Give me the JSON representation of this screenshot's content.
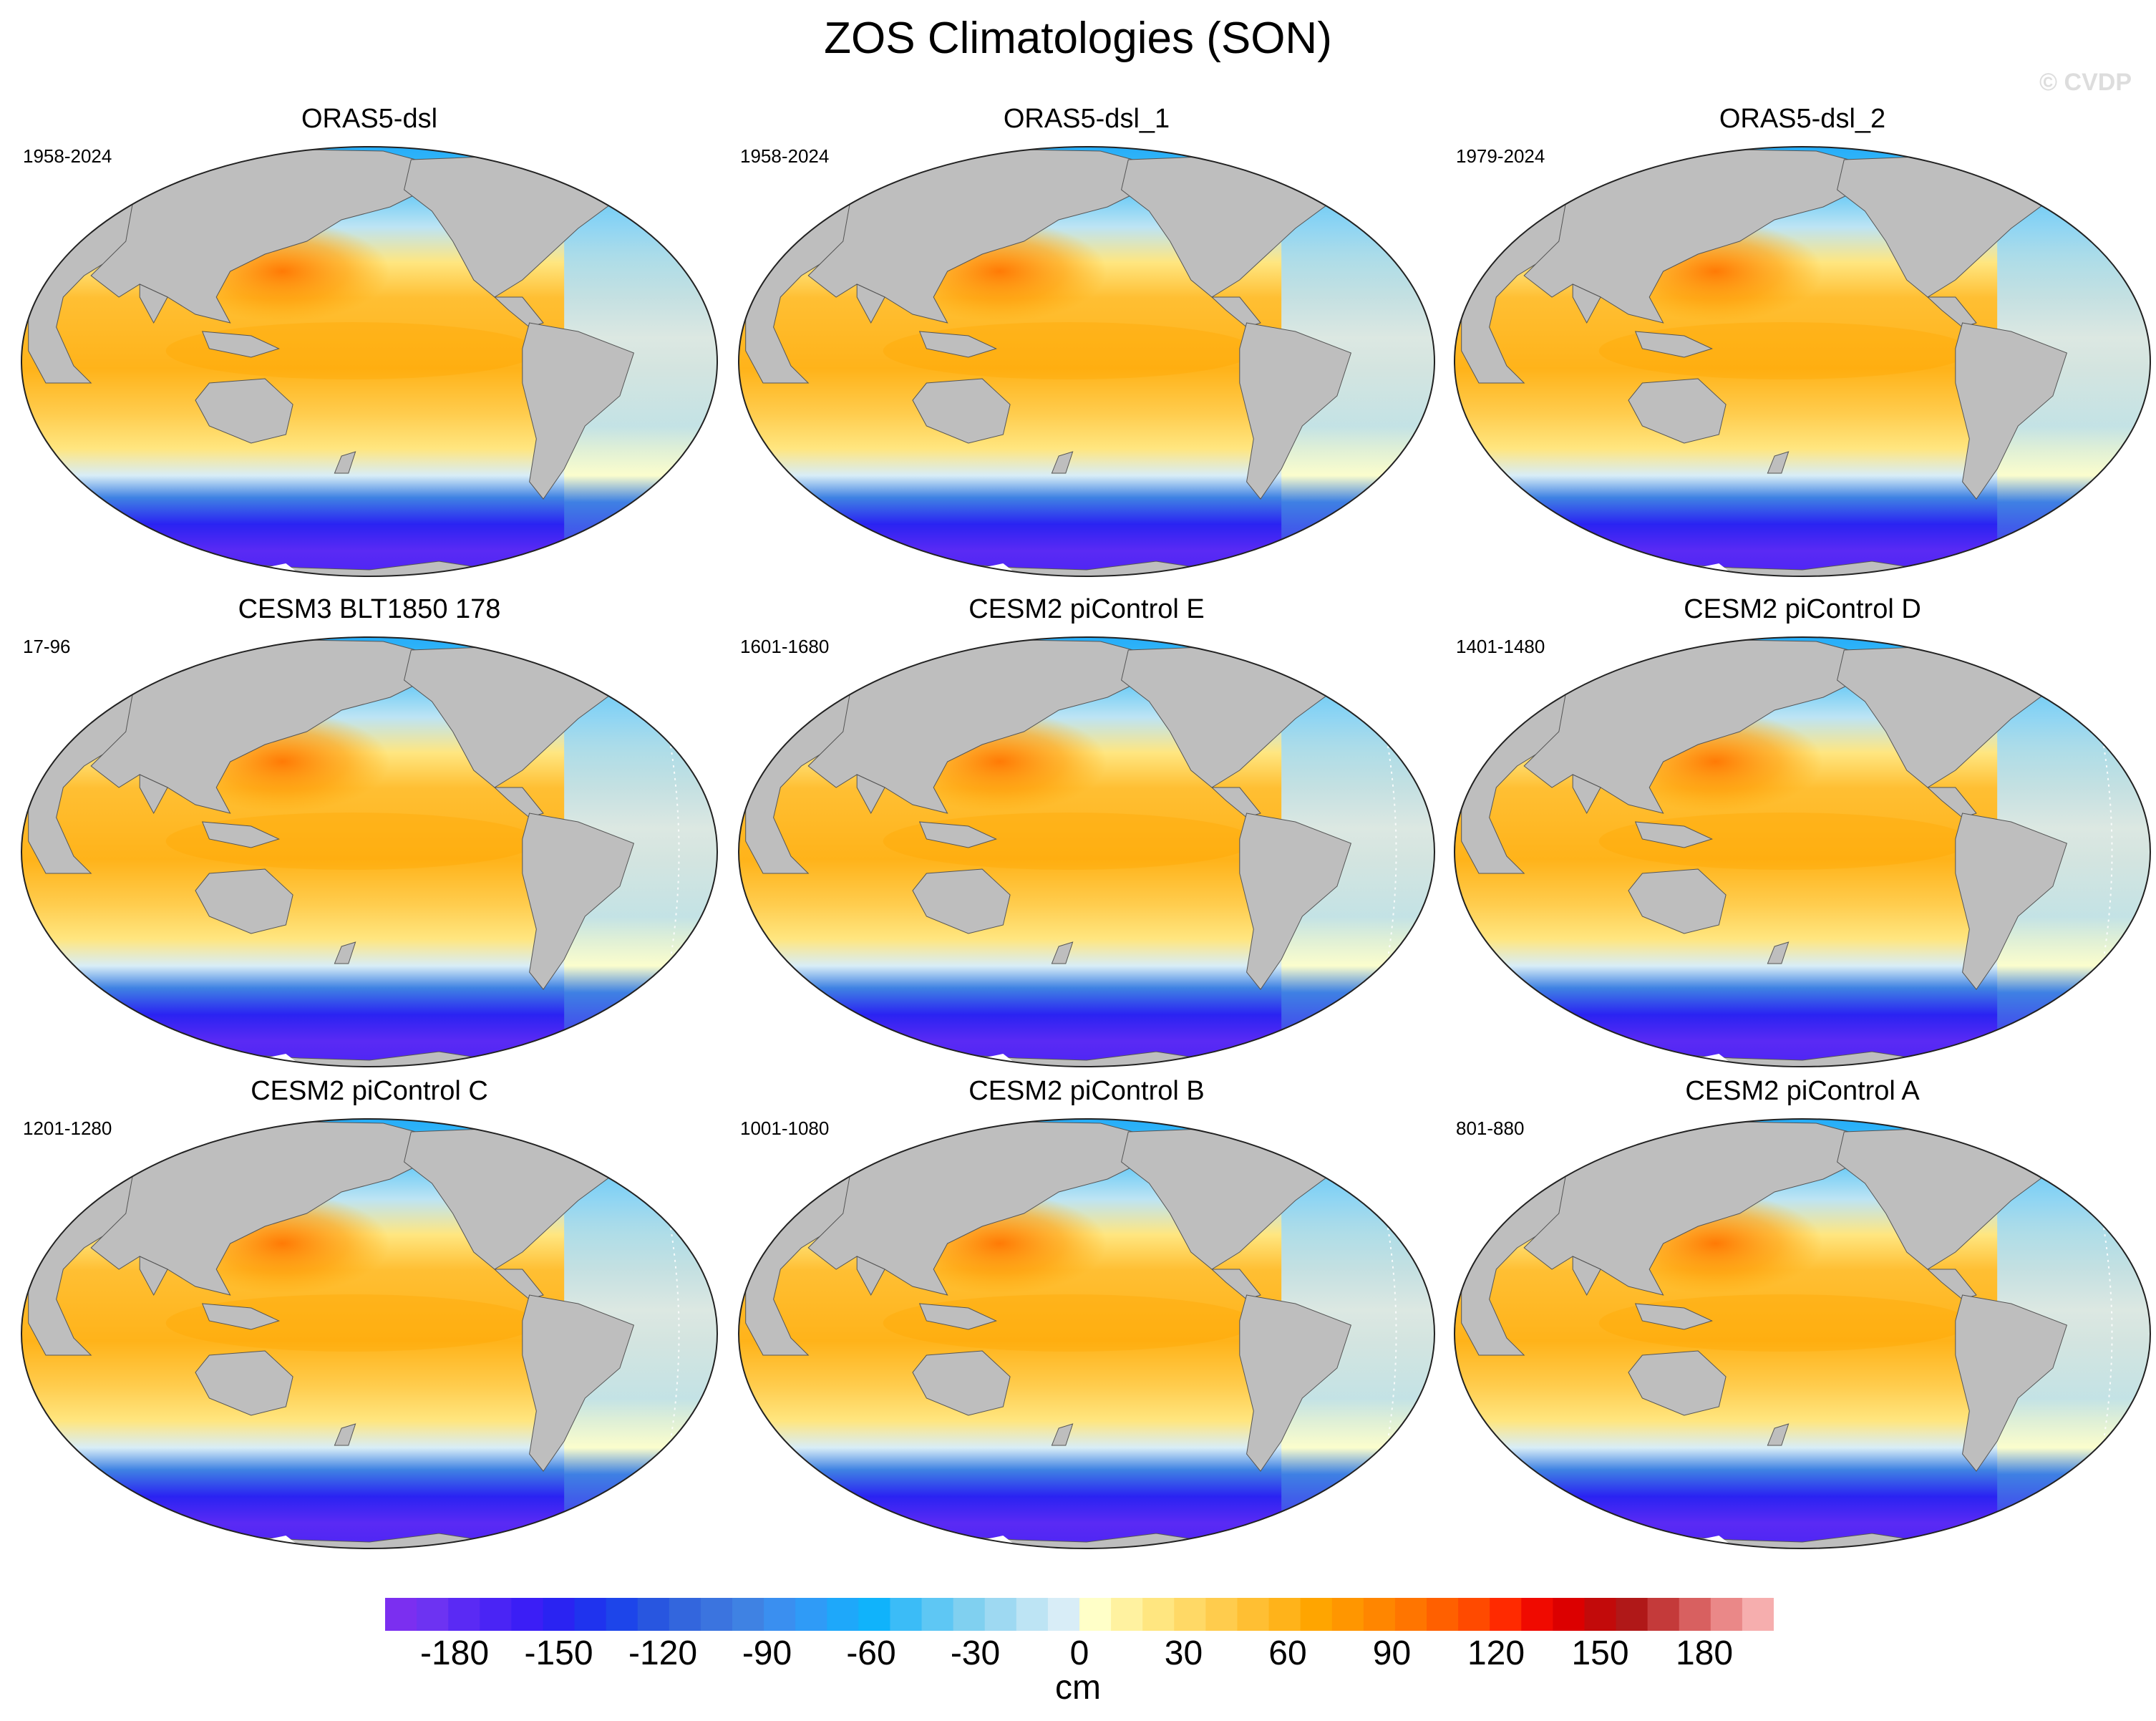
{
  "title": "ZOS Climatologies (SON)",
  "watermark": "© CVDP",
  "colors": {
    "land": "#bebebe",
    "ice": "#ffffff",
    "ocean_outline": "#222222"
  },
  "panels": [
    {
      "title": "ORAS5-dsl",
      "period": "1958-2024",
      "dateline_artifact": false
    },
    {
      "title": "ORAS5-dsl_1",
      "period": "1958-2024",
      "dateline_artifact": false
    },
    {
      "title": "ORAS5-dsl_2",
      "period": "1979-2024",
      "dateline_artifact": false
    },
    {
      "title": "CESM3 BLT1850 178",
      "period": "17-96",
      "dateline_artifact": true
    },
    {
      "title": "CESM2 piControl E",
      "period": "1601-1680",
      "dateline_artifact": true
    },
    {
      "title": "CESM2 piControl D",
      "period": "1401-1480",
      "dateline_artifact": true
    },
    {
      "title": "CESM2 piControl C",
      "period": "1201-1280",
      "dateline_artifact": true
    },
    {
      "title": "CESM2 piControl B",
      "period": "1001-1080",
      "dateline_artifact": true
    },
    {
      "title": "CESM2 piControl A",
      "period": "801-880",
      "dateline_artifact": true
    }
  ],
  "colorbar": {
    "unit": "cm",
    "min": -200,
    "max": 200,
    "ticks": [
      "-180",
      "-150",
      "-120",
      "-90",
      "-60",
      "-30",
      "0",
      "30",
      "60",
      "90",
      "120",
      "150",
      "180"
    ],
    "tick_values": [
      -180,
      -150,
      -120,
      -90,
      -60,
      -30,
      0,
      30,
      60,
      90,
      120,
      150,
      180
    ],
    "colors": [
      "#7b2ff0",
      "#6d33f2",
      "#5a2af4",
      "#4a24f5",
      "#3b1ef6",
      "#2a23f2",
      "#1f33ee",
      "#1d45ea",
      "#2856e0",
      "#3366dd",
      "#3b74df",
      "#3f82e3",
      "#3a8ff0",
      "#2f9bf7",
      "#1ea8fa",
      "#10b3fb",
      "#3bbcf7",
      "#5ec7f4",
      "#80d0f0",
      "#9ed9f2",
      "#bde4f4",
      "#d8edf7",
      "#ffffc8",
      "#fff2a0",
      "#ffe680",
      "#ffd966",
      "#ffcc4d",
      "#ffbf33",
      "#ffb31a",
      "#ffa500",
      "#ff9600",
      "#ff8600",
      "#ff7500",
      "#ff6000",
      "#ff4a00",
      "#ff2a00",
      "#f00a00",
      "#dc0000",
      "#c20a0a",
      "#b01818",
      "#c43a3a",
      "#d86060",
      "#ea8888",
      "#f6aeae"
    ]
  }
}
